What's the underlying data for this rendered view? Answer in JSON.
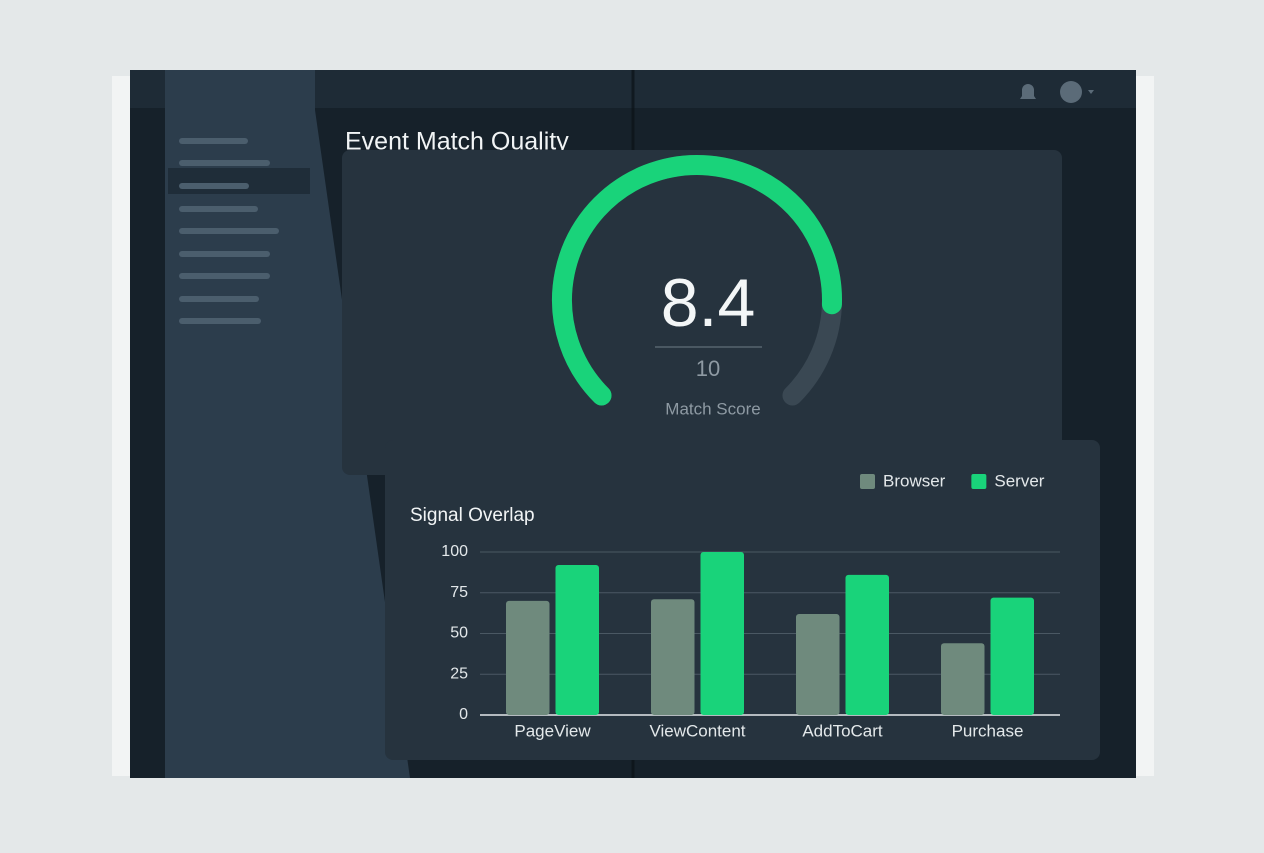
{
  "header": {
    "title": "Event Match Quality"
  },
  "gauge": {
    "value": 8.4,
    "max": 10,
    "label": "Match Score",
    "color": "#19d37a"
  },
  "chart_data": {
    "type": "bar",
    "title": "Signal Overlap",
    "categories": [
      "PageView",
      "ViewContent",
      "AddToCart",
      "Purchase"
    ],
    "series": [
      {
        "name": "Browser",
        "color": "#6f8a7d",
        "values": [
          70,
          71,
          62,
          44
        ]
      },
      {
        "name": "Server",
        "color": "#19d37a",
        "values": [
          92,
          100,
          86,
          72
        ]
      }
    ],
    "ylim": [
      0,
      100
    ],
    "yticks": [
      0,
      25,
      50,
      75,
      100
    ],
    "grid": true
  }
}
